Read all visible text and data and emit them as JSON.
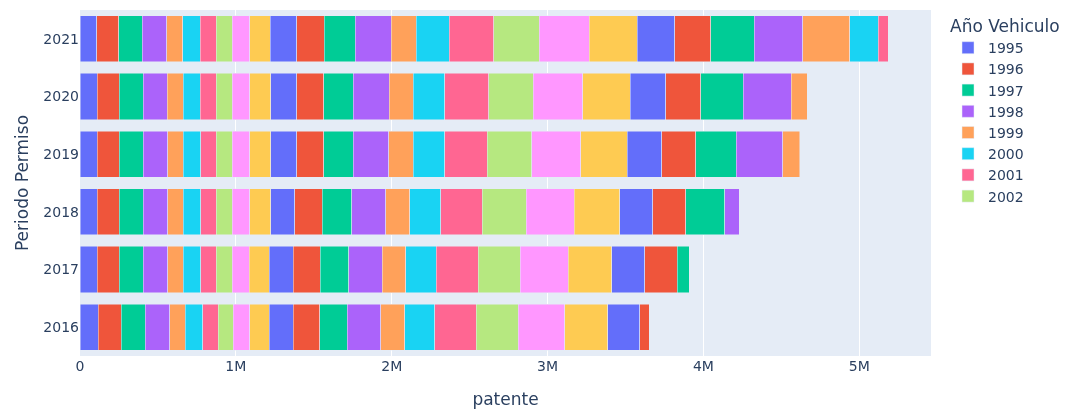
{
  "chart_data": {
    "type": "bar",
    "orientation": "horizontal",
    "stacked": true,
    "xlabel": "patente",
    "ylabel": "Periodo Permiso",
    "legend_title": "Año Vehiculo",
    "legend": "right",
    "grid": "x",
    "categories": [
      "2021",
      "2020",
      "2019",
      "2018",
      "2017",
      "2016"
    ],
    "xlim": [
      0,
      5460000
    ],
    "xticks": [
      0,
      {
        "value": 1000000,
        "label": "1M"
      },
      {
        "value": 2000000,
        "label": "2M"
      },
      {
        "value": 3000000,
        "label": "3M"
      },
      {
        "value": 4000000,
        "label": "4M"
      },
      {
        "value": 5000000,
        "label": "5M"
      }
    ],
    "series": [
      {
        "name": "1995",
        "color": "#636efa",
        "values": [
          108000,
          112000,
          112000,
          112000,
          112000,
          116000
        ]
      },
      {
        "name": "1996",
        "color": "#ef553b",
        "values": [
          140000,
          141000,
          141000,
          141000,
          141000,
          148000
        ]
      },
      {
        "name": "1997",
        "color": "#00cc96",
        "values": [
          152000,
          154000,
          154000,
          154000,
          154000,
          154000
        ]
      },
      {
        "name": "1998",
        "color": "#ab63fa",
        "values": [
          156000,
          153000,
          156000,
          156000,
          156000,
          158000
        ]
      },
      {
        "name": "1999",
        "color": "#ffa15a",
        "values": [
          103000,
          102000,
          99000,
          99000,
          99000,
          99000
        ]
      },
      {
        "name": "2000",
        "color": "#19d3f3",
        "values": [
          112000,
          109000,
          114000,
          114000,
          114000,
          112000
        ]
      },
      {
        "name": "2001",
        "color": "#ff6692",
        "values": [
          104000,
          104000,
          99000,
          99000,
          99000,
          99000
        ]
      },
      {
        "name": "2002",
        "color": "#b6e880",
        "values": [
          103000,
          103000,
          103000,
          103000,
          103000,
          96000
        ]
      },
      {
        "color": "#ff97ff",
        "values": [
          110000,
          112000,
          112000,
          112000,
          108000,
          108000
        ]
      },
      {
        "color": "#fecb52",
        "values": [
          132000,
          134000,
          134000,
          134000,
          129000,
          125000
        ]
      },
      {
        "color": "#636efa",
        "values": [
          171000,
          167000,
          167000,
          154000,
          154000,
          154000
        ]
      },
      {
        "color": "#ef553b",
        "values": [
          176000,
          174000,
          174000,
          176000,
          174000,
          169000
        ]
      },
      {
        "color": "#00cc96",
        "values": [
          198000,
          189000,
          189000,
          189000,
          182000,
          178000
        ]
      },
      {
        "color": "#ab63fa",
        "values": [
          231000,
          231000,
          228000,
          220000,
          213000,
          214000
        ]
      },
      {
        "color": "#ffa15a",
        "values": [
          162000,
          153000,
          156000,
          153000,
          152000,
          154000
        ]
      },
      {
        "color": "#19d3f3",
        "values": [
          211000,
          203000,
          203000,
          198000,
          196000,
          193000
        ]
      },
      {
        "color": "#ff6692",
        "values": [
          284000,
          281000,
          272000,
          268000,
          268000,
          266000
        ]
      },
      {
        "color": "#b6e880",
        "values": [
          292000,
          286000,
          285000,
          282000,
          270000,
          270000
        ]
      },
      {
        "color": "#ff97ff",
        "values": [
          323000,
          319000,
          316000,
          307000,
          307000,
          296000
        ]
      },
      {
        "color": "#fecb52",
        "values": [
          308000,
          302000,
          296000,
          291000,
          280000,
          276000
        ]
      },
      {
        "color": "#636efa",
        "values": [
          239000,
          230000,
          221000,
          212000,
          213000,
          206000
        ]
      },
      {
        "color": "#ef553b",
        "values": [
          232000,
          225000,
          221000,
          212000,
          208000,
          61000
        ]
      },
      {
        "color": "#00cc96",
        "values": [
          278000,
          272000,
          260000,
          252000,
          76000,
          null
        ]
      },
      {
        "color": "#ab63fa",
        "values": [
          313000,
          306000,
          298000,
          92000,
          null,
          null
        ]
      },
      {
        "color": "#ffa15a",
        "values": [
          302000,
          105000,
          109000,
          null,
          null,
          null
        ]
      },
      {
        "color": "#19d3f3",
        "values": [
          181000,
          null,
          null,
          null,
          null,
          null
        ]
      },
      {
        "color": "#ff6692",
        "values": [
          64000,
          null,
          null,
          null,
          null,
          null
        ]
      }
    ]
  }
}
